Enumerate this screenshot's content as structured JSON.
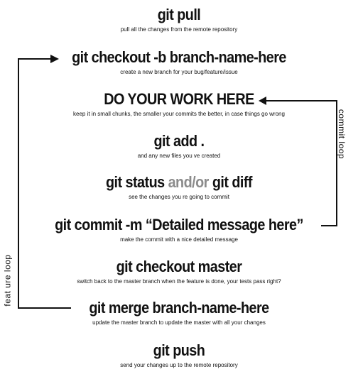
{
  "steps": [
    {
      "id": "git-pull",
      "cmd": "git pull",
      "desc": "pull all the changes from the remote repository"
    },
    {
      "id": "git-checkout-b",
      "cmd": "git checkout -b branch-name-here",
      "desc": "create a new branch for your bug/feature/issue"
    },
    {
      "id": "do-your-work",
      "cmd": "DO YOUR WORK HERE",
      "desc": "keep it in small chunks, the smaller your commits the better, in case things go wrong"
    },
    {
      "id": "git-add",
      "cmd": "git add .",
      "desc": "and any new files you ve created"
    },
    {
      "id": "git-status",
      "cmd_a": "git status",
      "cmd_and": "and/or",
      "cmd_b": "git diff",
      "desc": "see the changes you re going to commit"
    },
    {
      "id": "git-commit",
      "cmd": "git commit -m “Detailed message here”",
      "desc": "make the commit with a nice detailed message"
    },
    {
      "id": "git-checkout-master",
      "cmd": "git checkout master",
      "desc": "switch back to the master branch when the feature is done, your tests pass right?"
    },
    {
      "id": "git-merge",
      "cmd": "git merge branch-name-here",
      "desc": "update the master branch to update the master with all your changes"
    },
    {
      "id": "git-push",
      "cmd": "git push",
      "desc": "send your changes up to the remote repository"
    }
  ],
  "loops": {
    "commit_label": "commit loop",
    "feature_label": "feat ure loop"
  }
}
